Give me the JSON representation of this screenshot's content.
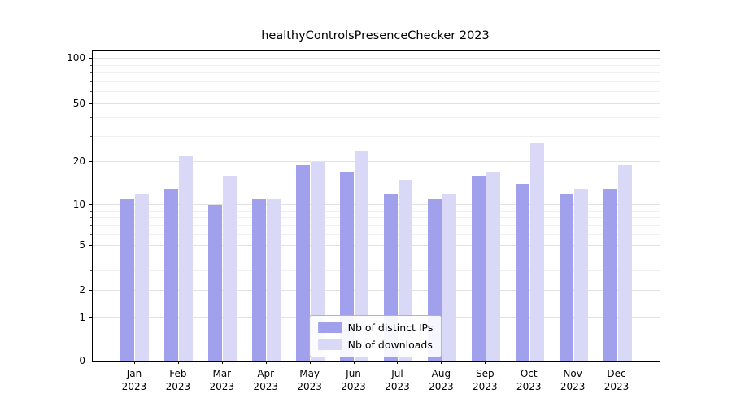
{
  "chart_data": {
    "type": "bar",
    "title": "healthyControlsPresenceChecker 2023",
    "year_label": "2023",
    "months": [
      "Jan",
      "Feb",
      "Mar",
      "Apr",
      "May",
      "Jun",
      "Jul",
      "Aug",
      "Sep",
      "Oct",
      "Nov",
      "Dec"
    ],
    "series": [
      {
        "name": "Nb of distinct IPs",
        "color": "#a0a0ed",
        "values": [
          11,
          13,
          10,
          11,
          19,
          17,
          12,
          11,
          16,
          14,
          12,
          13
        ]
      },
      {
        "name": "Nb of downloads",
        "color": "#d9d9f7",
        "values": [
          12,
          22,
          16,
          11,
          20,
          24,
          15,
          12,
          17,
          27,
          13,
          19
        ]
      }
    ],
    "yticks": [
      100,
      50,
      20,
      10,
      5,
      2,
      1,
      0
    ],
    "minor_gridlines": [
      3,
      4,
      6,
      7,
      8,
      9,
      30,
      40,
      60,
      70,
      80,
      90
    ],
    "scale": "symlog",
    "ylim": [
      0,
      100
    ],
    "grid": true,
    "legend_position": "lower center"
  }
}
